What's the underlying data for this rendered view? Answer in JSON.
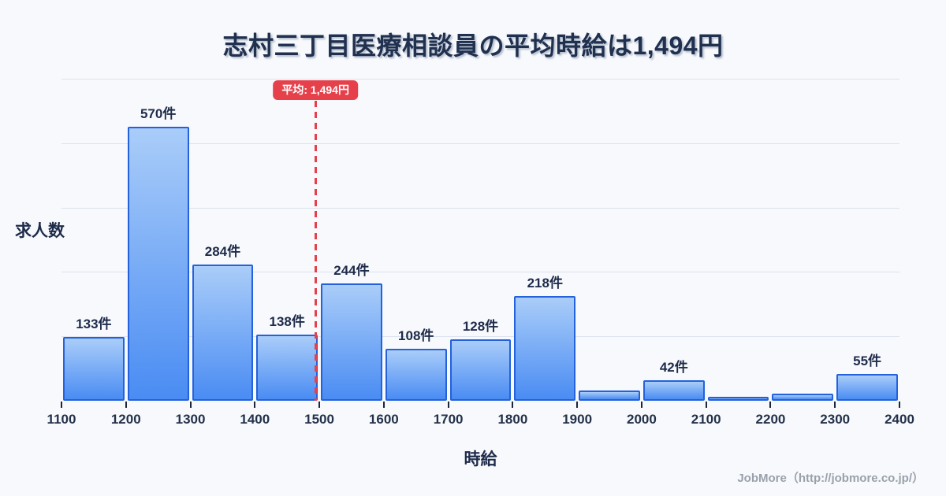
{
  "title": "志村三丁目医療相談員の平均時給は1,494円",
  "footer": "JobMore（http://jobmore.co.jp/）",
  "chart_data": {
    "type": "bar",
    "title": "志村三丁目医療相談員の平均時給は1,494円",
    "xlabel": "時給",
    "ylabel": "求人数",
    "unit": "件",
    "bin_edges": [
      1100,
      1200,
      1300,
      1400,
      1500,
      1600,
      1700,
      1800,
      1900,
      2000,
      2100,
      2200,
      2300,
      2400
    ],
    "values": [
      133,
      570,
      284,
      138,
      244,
      108,
      128,
      218,
      22,
      42,
      8,
      15,
      55
    ],
    "bar_labels": [
      "133件",
      "570件",
      "284件",
      "138件",
      "244件",
      "108件",
      "128件",
      "218件",
      "",
      "42件",
      "",
      "",
      "55件"
    ],
    "average": 1494,
    "average_label": "平均: 1,494円",
    "xlim": [
      1100,
      2400
    ],
    "ylim": [
      0,
      670
    ],
    "grid": "horizontal",
    "gridline_count": 5,
    "legend_position": "none"
  },
  "colors": {
    "background": "#f7f9fc",
    "bar_fill_top": "#aacdf9",
    "bar_fill_bottom": "#4a8cf3",
    "bar_border": "#2361dd",
    "average_line": "#e6414b",
    "badge_background": "#e6414b",
    "badge_text": "#ffffff",
    "text_dark": "#1e2b4a",
    "gridline": "#dde3ee",
    "footer_text": "#9aa1ab"
  }
}
